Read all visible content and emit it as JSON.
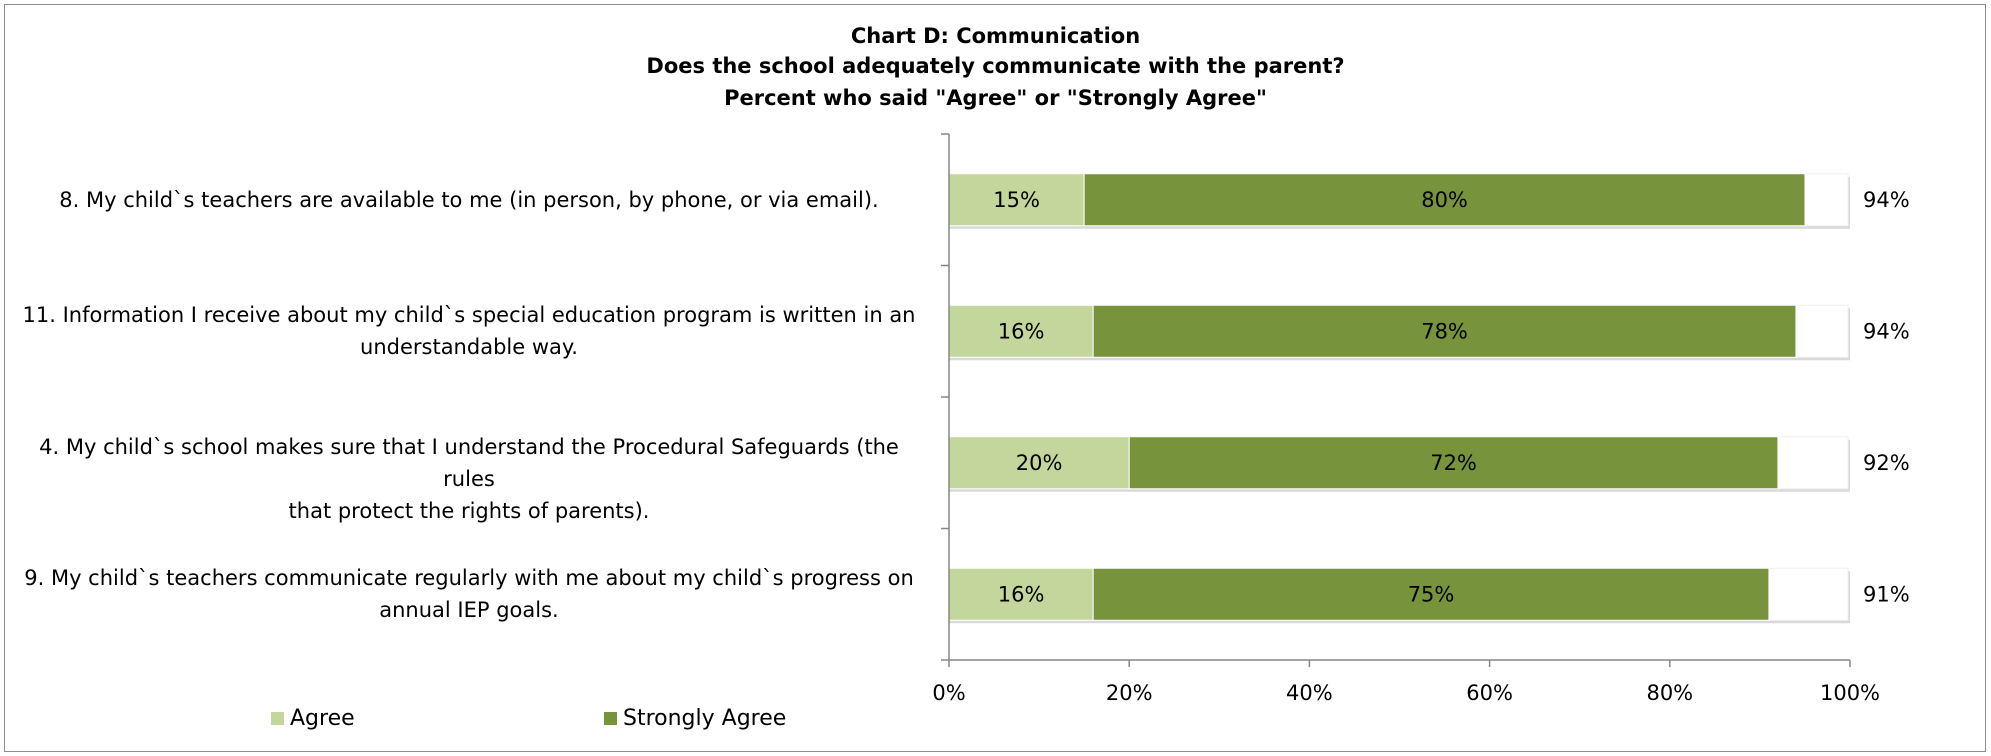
{
  "chart_data": {
    "type": "bar",
    "orientation": "horizontal",
    "stacked": true,
    "title": [
      "Chart D: Communication",
      "Does the school adequately communicate with the parent?",
      "Percent who said \"Agree\" or \"Strongly Agree\""
    ],
    "categories": [
      "8. My child`s teachers are available to me (in person, by phone, or via email).",
      "11. Information I receive about my child`s special education program is written in an understandable way.",
      "4. My child`s school makes sure that I understand the Procedural Safeguards (the rules that protect the rights of parents).",
      "9. My child`s teachers communicate regularly with me about my child`s progress on annual IEP goals."
    ],
    "category_lines": [
      [
        "8. My child`s teachers are available to me (in person, by phone, or via email)."
      ],
      [
        "11. Information I receive about my child`s special education program is written in an",
        "understandable way."
      ],
      [
        "4. My child`s school makes sure that I understand the Procedural Safeguards (the rules",
        "that protect the rights of parents)."
      ],
      [
        "9. My child`s teachers communicate regularly with me about my child`s progress on",
        "annual IEP goals."
      ]
    ],
    "series": [
      {
        "name": "Agree",
        "color": "#c3d69b",
        "values": [
          15,
          16,
          20,
          16
        ],
        "labels": [
          "15%",
          "16%",
          "20%",
          "16%"
        ]
      },
      {
        "name": "Strongly Agree",
        "color": "#77933c",
        "values": [
          80,
          78,
          72,
          75
        ],
        "labels": [
          "80%",
          "78%",
          "72%",
          "75%"
        ]
      }
    ],
    "totals": [
      94,
      94,
      92,
      91
    ],
    "total_labels": [
      "94%",
      "94%",
      "92%",
      "91%"
    ],
    "x_ticks": [
      0,
      20,
      40,
      60,
      80,
      100
    ],
    "x_tick_labels": [
      "0%",
      "20%",
      "40%",
      "60%",
      "80%",
      "100%"
    ],
    "xlim": [
      0,
      100
    ],
    "grid": false,
    "legend": "bottom-left"
  }
}
